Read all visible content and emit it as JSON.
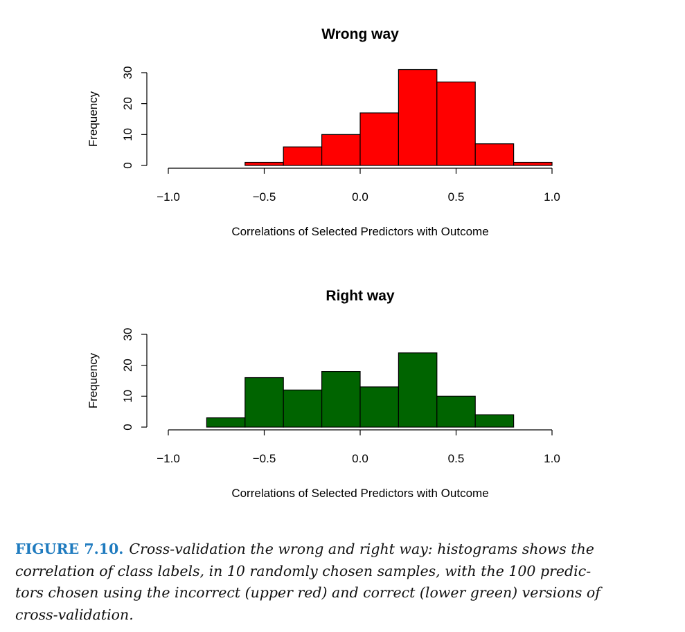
{
  "chart_data": [
    {
      "type": "bar",
      "title": "Wrong way",
      "xlabel": "Correlations of Selected Predictors with Outcome",
      "ylabel": "Frequency",
      "bin_edges": [
        -0.6,
        -0.4,
        -0.2,
        0.0,
        0.2,
        0.4,
        0.6,
        0.8,
        1.0
      ],
      "values": [
        1,
        6,
        10,
        17,
        31,
        27,
        7,
        1
      ],
      "xlim": [
        -1.0,
        1.0
      ],
      "ylim": [
        0,
        30
      ],
      "xticks": [
        "−1.0",
        "−0.5",
        "0.0",
        "0.5",
        "1.0"
      ],
      "xtick_values": [
        -1.0,
        -0.5,
        0.0,
        0.5,
        1.0
      ],
      "yticks": [
        "0",
        "10",
        "20",
        "30"
      ],
      "ytick_values": [
        0,
        10,
        20,
        30
      ],
      "color": "#ff0000"
    },
    {
      "type": "bar",
      "title": "Right way",
      "xlabel": "Correlations of Selected Predictors with Outcome",
      "ylabel": "Frequency",
      "bin_edges": [
        -0.8,
        -0.6,
        -0.4,
        -0.2,
        0.0,
        0.2,
        0.4,
        0.6,
        0.8
      ],
      "values": [
        3,
        16,
        12,
        18,
        13,
        24,
        10,
        4
      ],
      "xlim": [
        -1.0,
        1.0
      ],
      "ylim": [
        0,
        30
      ],
      "xticks": [
        "−1.0",
        "−0.5",
        "0.0",
        "0.5",
        "1.0"
      ],
      "xtick_values": [
        -1.0,
        -0.5,
        0.0,
        0.5,
        1.0
      ],
      "yticks": [
        "0",
        "10",
        "20",
        "30"
      ],
      "ytick_values": [
        0,
        10,
        20,
        30
      ],
      "color": "#006400"
    }
  ],
  "caption": {
    "label": "FIGURE 7.10.",
    "lines": [
      "Cross-validation the wrong and right way: histograms shows the",
      "correlation of class labels, in 10 randomly chosen samples, with the 100 predic-",
      "tors chosen using the incorrect (upper red) and correct (lower green) versions of",
      "cross-validation."
    ]
  }
}
